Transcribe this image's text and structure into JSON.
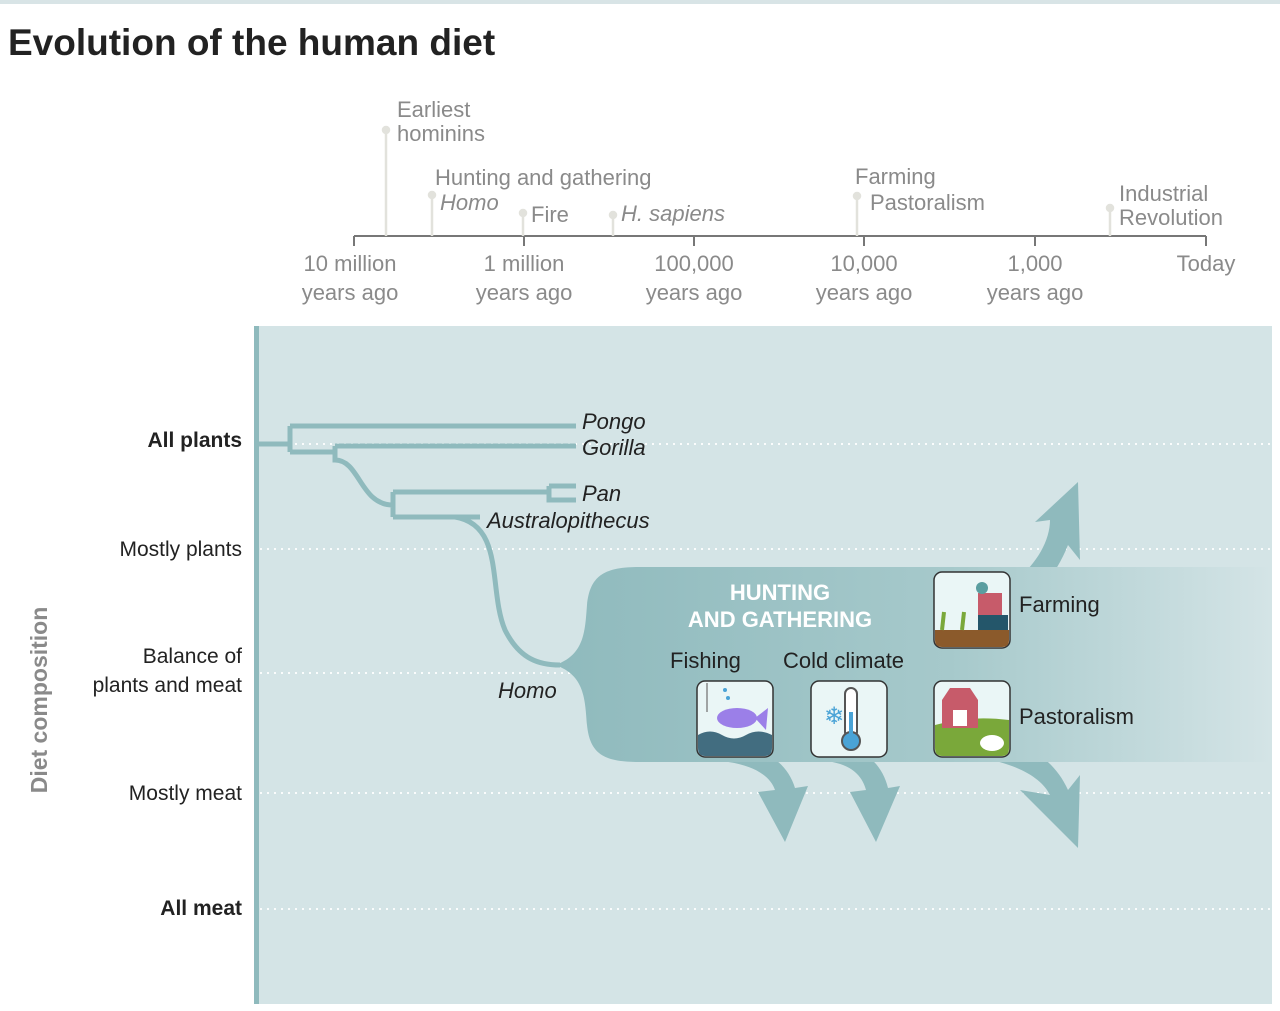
{
  "title": "Evolution of the human diet",
  "timeline": {
    "ticks": [
      {
        "l1": "10 million",
        "l2": "years ago"
      },
      {
        "l1": "1 million",
        "l2": "years ago"
      },
      {
        "l1": "100,000",
        "l2": "years ago"
      },
      {
        "l1": "10,000",
        "l2": "years ago"
      },
      {
        "l1": "1,000",
        "l2": "years ago"
      },
      {
        "l1": "Today",
        "l2": ""
      }
    ],
    "events": {
      "earliest_1": "Earliest",
      "earliest_2": "hominins",
      "hunting": "Hunting and gathering",
      "homo": "Homo",
      "fire": "Fire",
      "sapiens": "H. sapiens",
      "farming": "Farming",
      "pastoralism": "Pastoralism",
      "industrial_1": "Industrial",
      "industrial_2": "Revolution"
    }
  },
  "y_axis": {
    "title": "Diet composition",
    "levels": [
      "All plants",
      "Mostly plants",
      "Balance of",
      "plants and meat",
      "Mostly meat",
      "All meat"
    ]
  },
  "tree": {
    "pongo": "Pongo",
    "gorilla": "Gorilla",
    "pan": "Pan",
    "australopithecus": "Australopithecus",
    "homo": "Homo"
  },
  "flow": {
    "hg_1": "HUNTING",
    "hg_2": "AND GATHERING",
    "fishing": "Fishing",
    "cold": "Cold climate",
    "farming": "Farming",
    "pastoralism": "Pastoralism"
  },
  "colors": {
    "panel": "#d4e4e6",
    "teal": "#8fbabd",
    "text": "#222222",
    "timeline": "#8a8a8a"
  }
}
